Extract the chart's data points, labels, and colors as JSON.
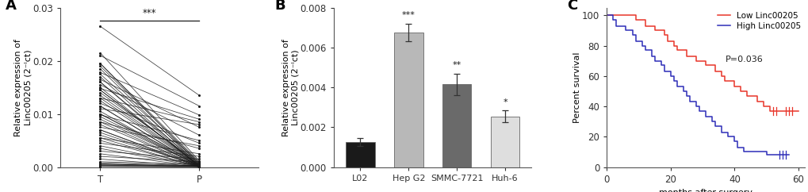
{
  "panel_A": {
    "label": "A",
    "ylabel": "Relative expression of\nLinc00205 (2⁻ᴵct)",
    "xtick_labels": [
      "T",
      "P"
    ],
    "ylim": [
      0,
      0.03
    ],
    "yticks": [
      0.0,
      0.01,
      0.02,
      0.03
    ],
    "significance": "***",
    "T_values": [
      0.0265,
      0.0215,
      0.021,
      0.0195,
      0.019,
      0.0185,
      0.0178,
      0.017,
      0.0165,
      0.016,
      0.0155,
      0.015,
      0.0148,
      0.0145,
      0.014,
      0.0135,
      0.013,
      0.0125,
      0.012,
      0.0115,
      0.011,
      0.0105,
      0.01,
      0.0098,
      0.0095,
      0.009,
      0.0085,
      0.008,
      0.0075,
      0.007,
      0.0065,
      0.006,
      0.0055,
      0.005,
      0.0045,
      0.004,
      0.0035,
      0.003,
      0.0025,
      0.002,
      0.0015,
      0.001,
      0.0008,
      0.0006,
      0.0005,
      0.0004,
      0.0003,
      0.0002,
      0.0001,
      0.0,
      0.0195,
      0.0175,
      0.016,
      0.0145,
      0.013,
      0.0115,
      0.01,
      0.0085,
      0.007,
      0.0055
    ],
    "P_values": [
      0.0135,
      0.0012,
      0.0115,
      0.0005,
      0.0008,
      0.0003,
      0.0098,
      0.0002,
      0.0075,
      0.0001,
      0.006,
      0.0001,
      0.009,
      0.0003,
      0.0007,
      0.0004,
      0.0085,
      0.0002,
      0.0045,
      0.0001,
      0.008,
      0.0001,
      0.0006,
      0.005,
      0.0002,
      0.0003,
      0.0035,
      0.0001,
      0.004,
      0.0002,
      0.0001,
      0.0003,
      0.0025,
      0.0001,
      0.002,
      0.0002,
      0.0001,
      0.0015,
      0.0001,
      0.001,
      0.0001,
      0.0005,
      0.0002,
      0.0001,
      0.0003,
      0.0001,
      0.0002,
      0.0001,
      0.0,
      0.0,
      0.001,
      0.0008,
      0.0006,
      0.0004,
      0.0003,
      0.0002,
      0.0001,
      0.0001,
      0.0,
      0.0
    ]
  },
  "panel_B": {
    "label": "B",
    "ylabel": "Relative expression of\nLinc00205 (2⁻ᴵct)",
    "categories": [
      "L02",
      "Hep G2",
      "SMMC-7721",
      "Huh-6"
    ],
    "values": [
      0.00125,
      0.00675,
      0.00415,
      0.00255
    ],
    "errors": [
      0.0002,
      0.00045,
      0.00055,
      0.00028
    ],
    "colors": [
      "#1a1a1a",
      "#b8b8b8",
      "#6a6a6a",
      "#dedede"
    ],
    "significance": [
      "",
      "***",
      "**",
      "*"
    ],
    "ylim": [
      0,
      0.008
    ],
    "yticks": [
      0.0,
      0.002,
      0.004,
      0.006,
      0.008
    ]
  },
  "panel_C": {
    "label": "C",
    "xlabel": "months after surgery",
    "ylabel": "Percent survival",
    "xlim": [
      0,
      62
    ],
    "ylim": [
      0,
      105
    ],
    "yticks": [
      0,
      20,
      40,
      60,
      80,
      100
    ],
    "xticks": [
      0,
      20,
      40,
      60
    ],
    "legend_labels": [
      "Low Linc00205",
      "High Linc00205"
    ],
    "pvalue_text": "P=0.036",
    "low_color": "#e8352a",
    "high_color": "#2d2db8",
    "low_times": [
      0,
      2,
      4,
      6,
      8,
      9,
      11,
      12,
      13,
      15,
      17,
      18,
      19,
      21,
      22,
      24,
      25,
      27,
      28,
      29,
      30,
      31,
      33,
      34,
      36,
      37,
      38,
      40,
      41,
      42,
      44,
      45,
      47,
      48,
      49,
      51,
      52,
      53,
      54,
      56,
      57,
      58,
      59,
      60
    ],
    "low_surv": [
      100,
      100,
      100,
      100,
      100,
      97,
      97,
      93,
      93,
      90,
      90,
      87,
      83,
      80,
      77,
      77,
      73,
      73,
      70,
      70,
      70,
      67,
      67,
      63,
      60,
      57,
      57,
      53,
      53,
      50,
      47,
      47,
      43,
      43,
      40,
      37,
      37,
      37,
      37,
      37,
      37,
      37,
      37,
      37
    ],
    "low_censor": [
      false,
      false,
      false,
      false,
      false,
      false,
      false,
      false,
      false,
      false,
      false,
      false,
      false,
      false,
      false,
      false,
      false,
      false,
      false,
      false,
      false,
      false,
      false,
      false,
      false,
      false,
      false,
      false,
      false,
      false,
      false,
      false,
      false,
      false,
      false,
      false,
      true,
      true,
      false,
      true,
      true,
      true,
      false,
      false
    ],
    "high_times": [
      0,
      2,
      3,
      5,
      6,
      8,
      9,
      11,
      12,
      14,
      15,
      17,
      18,
      20,
      21,
      22,
      24,
      25,
      26,
      28,
      29,
      31,
      33,
      34,
      36,
      38,
      40,
      41,
      43,
      44,
      46,
      48,
      50,
      52,
      54,
      55,
      56,
      57
    ],
    "high_surv": [
      100,
      97,
      93,
      93,
      90,
      87,
      83,
      80,
      77,
      73,
      70,
      67,
      63,
      60,
      57,
      53,
      50,
      47,
      43,
      40,
      37,
      33,
      30,
      27,
      23,
      20,
      17,
      13,
      10,
      10,
      10,
      10,
      8,
      8,
      8,
      8,
      8,
      8
    ],
    "high_censor": [
      false,
      false,
      false,
      false,
      false,
      false,
      false,
      false,
      false,
      false,
      false,
      false,
      false,
      false,
      false,
      false,
      false,
      false,
      false,
      false,
      false,
      false,
      false,
      false,
      false,
      false,
      false,
      false,
      false,
      false,
      false,
      false,
      false,
      false,
      true,
      true,
      true,
      false
    ]
  },
  "line_color": "#1a1a1a",
  "background_color": "#ffffff",
  "label_fontsize": 13,
  "tick_fontsize": 8.5,
  "axis_label_fontsize": 8.0
}
